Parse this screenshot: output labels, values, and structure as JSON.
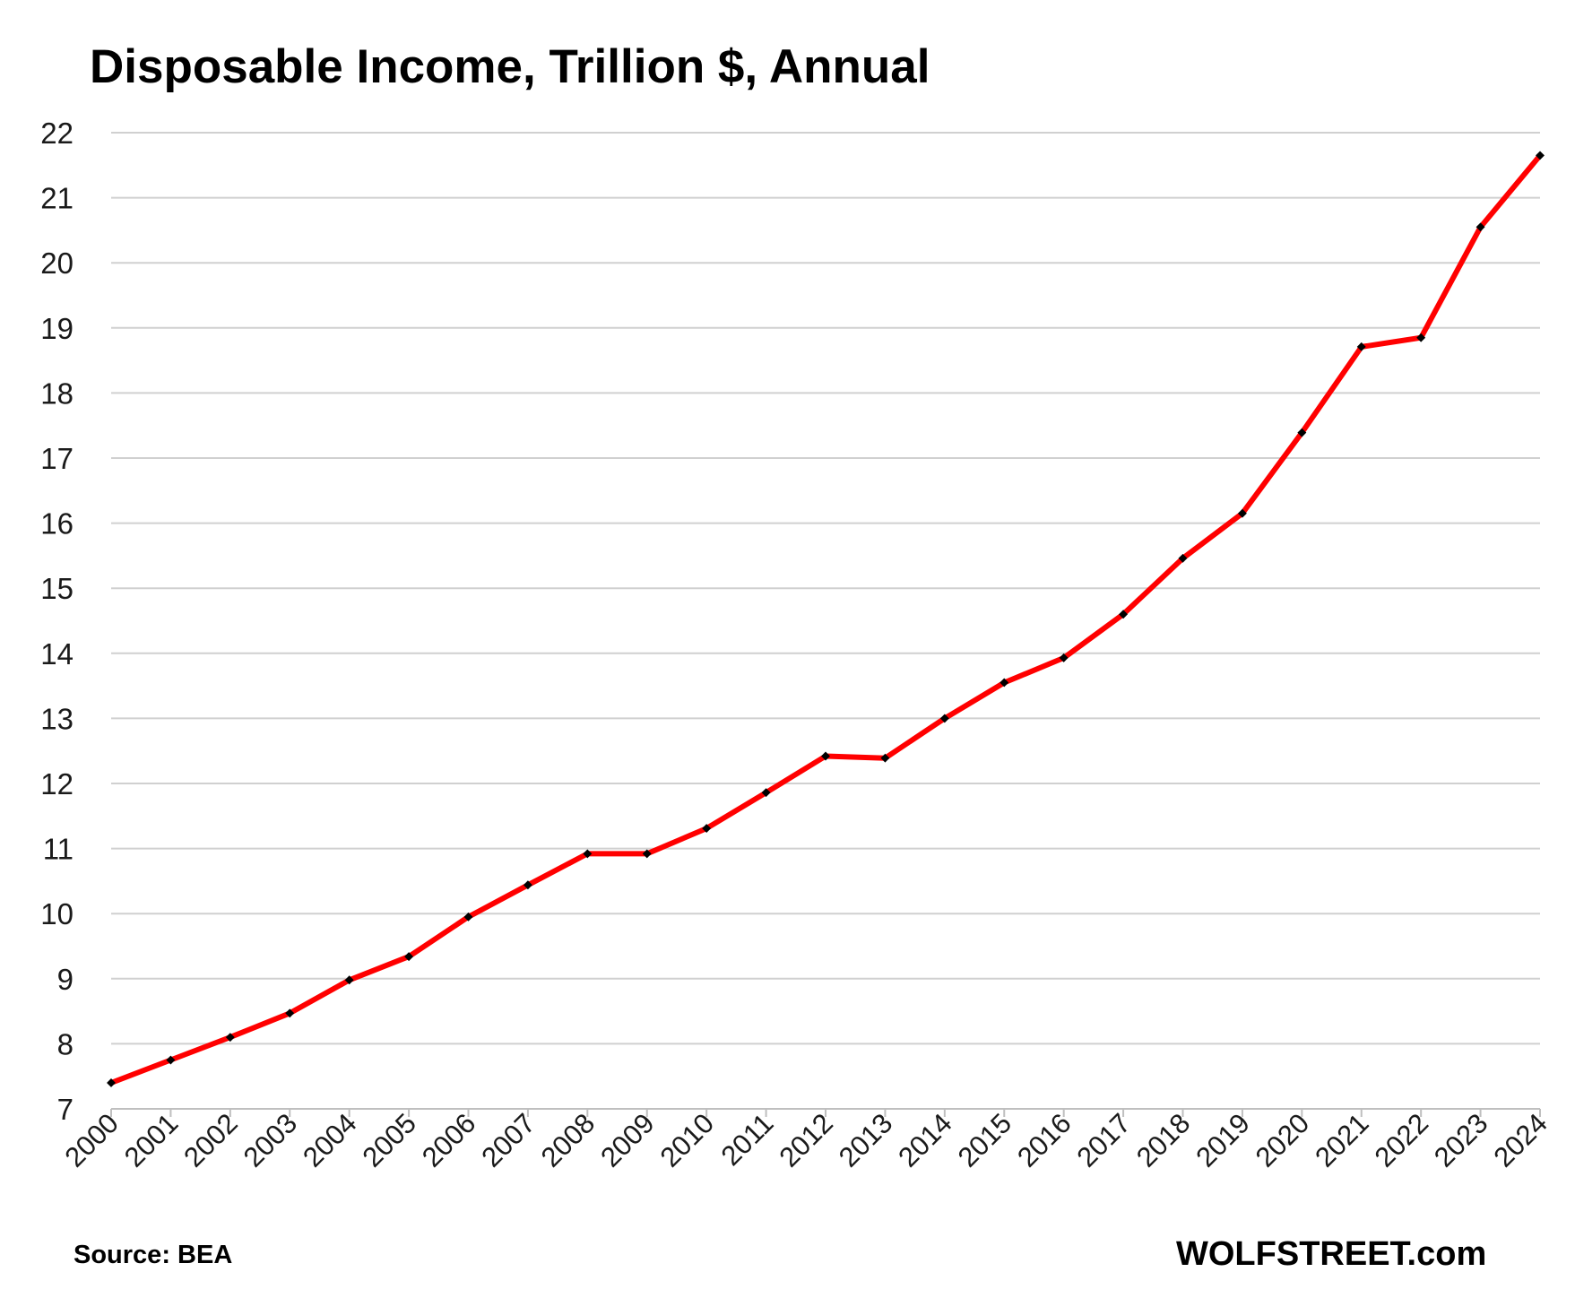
{
  "chart_data": {
    "type": "line",
    "title": "Disposable Income, Trillion $, Annual",
    "xlabel": "",
    "ylabel": "",
    "categories": [
      "2000",
      "2001",
      "2002",
      "2003",
      "2004",
      "2005",
      "2006",
      "2007",
      "2008",
      "2009",
      "2010",
      "2011",
      "2012",
      "2013",
      "2014",
      "2015",
      "2016",
      "2017",
      "2018",
      "2019",
      "2020",
      "2021",
      "2022",
      "2023",
      "2024"
    ],
    "series": [
      {
        "name": "Disposable Income",
        "color": "#ff0000",
        "marker_color": "#000000",
        "values": [
          7.4,
          7.75,
          8.1,
          8.47,
          8.98,
          9.34,
          9.95,
          10.44,
          10.92,
          10.92,
          11.31,
          11.86,
          12.42,
          12.39,
          13.0,
          13.55,
          13.93,
          14.6,
          15.46,
          16.15,
          17.39,
          18.71,
          18.85,
          20.55,
          21.65
        ]
      }
    ],
    "ylim": [
      7,
      22
    ],
    "yticks": [
      7,
      8,
      9,
      10,
      11,
      12,
      13,
      14,
      15,
      16,
      17,
      18,
      19,
      20,
      21,
      22
    ],
    "grid": true,
    "legend": "none"
  },
  "footer": {
    "source": "Source: BEA",
    "brand": "WOLFSTREET.com"
  }
}
